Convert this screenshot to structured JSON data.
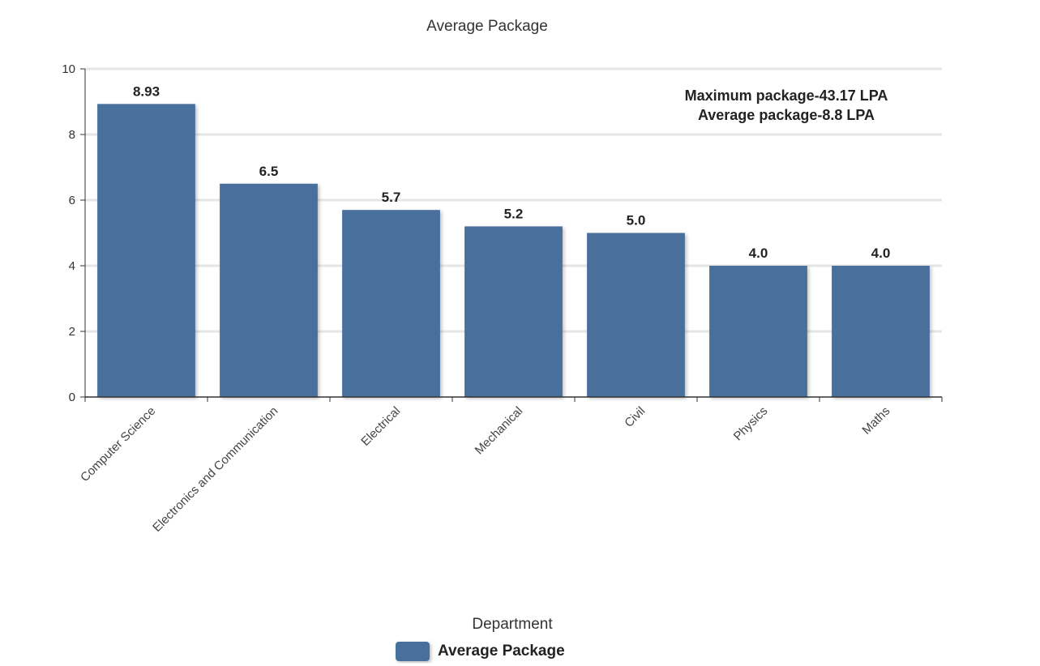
{
  "chart_data": {
    "type": "bar",
    "title": "Average Package",
    "xlabel": "Department",
    "ylabel": "",
    "categories": [
      "Computer Science",
      "Electronics and Communication",
      "Electrical",
      "Mechanical",
      "Civil",
      "Physics",
      "Maths"
    ],
    "series": [
      {
        "name": "Average Package",
        "values": [
          8.93,
          6.5,
          5.7,
          5.2,
          5.0,
          4.0,
          4.0
        ],
        "labels": [
          "8.93",
          "6.5",
          "5.7",
          "5.2",
          "5.0",
          "4.0",
          "4.0"
        ],
        "color": "#4a6f9d"
      }
    ],
    "ylim": [
      0,
      10
    ],
    "yticks": [
      "0",
      "2",
      "4",
      "6",
      "8",
      "10"
    ],
    "grid": true,
    "annotations": [
      "Maximum package-43.17 LPA",
      "Average package-8.8 LPA"
    ],
    "legend_position": "bottom"
  }
}
